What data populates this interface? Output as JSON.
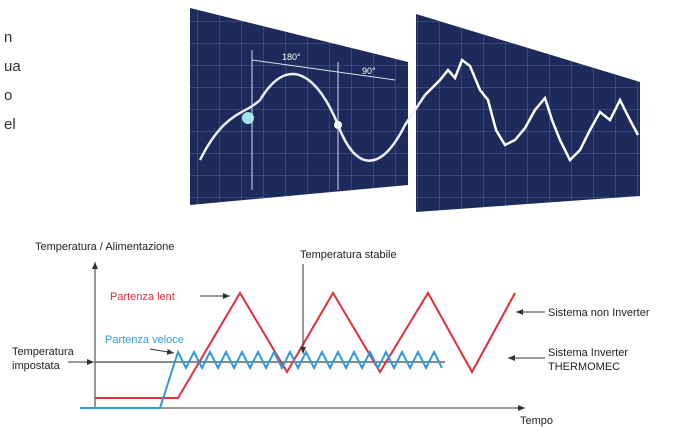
{
  "intro_fragments": [
    "n",
    "ua",
    "o",
    "el"
  ],
  "image": {
    "angle_labels": [
      "180°",
      "90°"
    ]
  },
  "diagram": {
    "y_axis_label": "Temperatura / Alimentazione",
    "x_axis_label": "Tempo",
    "stable_label": "Temperatura stabile",
    "slow_start": "Partenza lent",
    "fast_start": "Partenza veloce",
    "set_temperature": [
      "Temperatura",
      "impostata"
    ],
    "non_inverter": "Sistema non Inverter",
    "inverter": [
      "Sistema Inverter",
      "THERMOMEC"
    ]
  }
}
